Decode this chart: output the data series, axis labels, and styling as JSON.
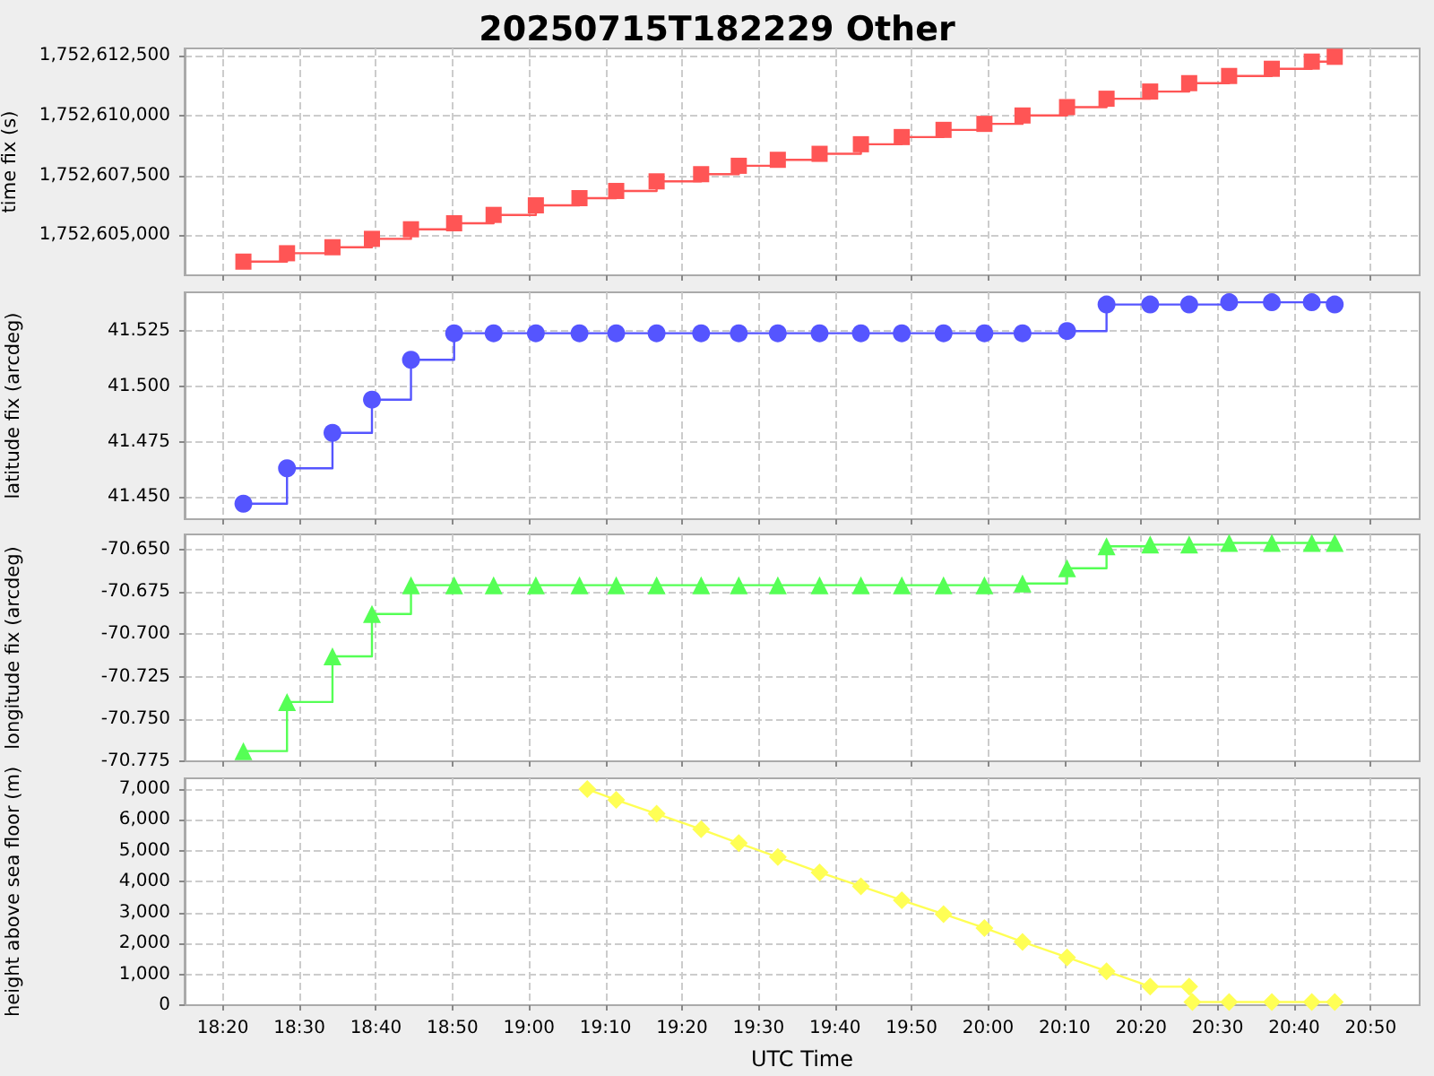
{
  "chart_data": [
    {
      "type": "step",
      "title": "20250715T182229 Other",
      "ylabel": "time fix (s)",
      "marker": "square",
      "grid": true,
      "tick_labels": "y",
      "x": [
        18.378,
        18.473,
        18.572,
        18.658,
        18.743,
        18.837,
        18.923,
        19.015,
        19.11,
        19.19,
        19.278,
        19.375,
        19.457,
        19.542,
        19.633,
        19.723,
        19.812,
        19.903,
        19.992,
        20.075,
        20.172,
        20.258,
        20.353,
        20.438,
        20.525,
        20.618,
        20.705,
        20.755
      ],
      "series": [
        {
          "color": "#ff5555",
          "values": [
            1752603900,
            1752604250,
            1752604500,
            1752604850,
            1752605250,
            1752605500,
            1752605850,
            1752606250,
            1752606550,
            1752606850,
            1752607250,
            1752607550,
            1752607900,
            1752608150,
            1752608400,
            1752608800,
            1752609100,
            1752609400,
            1752609650,
            1752610000,
            1752610350,
            1752610700,
            1752611000,
            1752611350,
            1752611650,
            1752611950,
            1752612250,
            1752612450
          ]
        }
      ],
      "xlim": [
        18.25,
        20.94
      ],
      "xticks": [
        {
          "value": 18.3333,
          "label": null
        },
        {
          "value": 18.5,
          "label": null
        },
        {
          "value": 18.6667,
          "label": null
        },
        {
          "value": 18.8333,
          "label": null
        },
        {
          "value": 19,
          "label": null
        },
        {
          "value": 19.1667,
          "label": null
        },
        {
          "value": 19.3333,
          "label": null
        },
        {
          "value": 19.5,
          "label": null
        },
        {
          "value": 19.6667,
          "label": null
        },
        {
          "value": 19.8333,
          "label": null
        },
        {
          "value": 20,
          "label": null
        },
        {
          "value": 20.1667,
          "label": null
        },
        {
          "value": 20.3333,
          "label": null
        },
        {
          "value": 20.5,
          "label": null
        },
        {
          "value": 20.6667,
          "label": null
        },
        {
          "value": 20.8333,
          "label": null
        }
      ],
      "ylim": [
        1752603330,
        1752612800
      ],
      "yticks": [
        {
          "value": 1752605000,
          "label": "1,752,605,000"
        },
        {
          "value": 1752607500,
          "label": "1,752,607,500"
        },
        {
          "value": 1752610000,
          "label": "1,752,610,000"
        },
        {
          "value": 1752612500,
          "label": "1,752,612,500"
        }
      ]
    },
    {
      "type": "step",
      "ylabel": "latitude fix (arcdeg)",
      "marker": "circle",
      "grid": true,
      "tick_labels": "y",
      "x": [
        18.378,
        18.473,
        18.572,
        18.658,
        18.743,
        18.837,
        18.923,
        19.015,
        19.11,
        19.19,
        19.278,
        19.375,
        19.457,
        19.542,
        19.633,
        19.723,
        19.812,
        19.903,
        19.992,
        20.075,
        20.172,
        20.258,
        20.353,
        20.438,
        20.525,
        20.618,
        20.705,
        20.755
      ],
      "series": [
        {
          "color": "#5555ff",
          "values": [
            41.447,
            41.463,
            41.479,
            41.494,
            41.512,
            41.524,
            41.524,
            41.524,
            41.524,
            41.524,
            41.524,
            41.524,
            41.524,
            41.524,
            41.524,
            41.524,
            41.524,
            41.524,
            41.524,
            41.524,
            41.525,
            41.537,
            41.537,
            41.537,
            41.538,
            41.538,
            41.538,
            41.537
          ]
        }
      ],
      "xlim": [
        18.25,
        20.94
      ],
      "xticks": [
        {
          "value": 18.3333,
          "label": null
        },
        {
          "value": 18.5,
          "label": null
        },
        {
          "value": 18.6667,
          "label": null
        },
        {
          "value": 18.8333,
          "label": null
        },
        {
          "value": 19,
          "label": null
        },
        {
          "value": 19.1667,
          "label": null
        },
        {
          "value": 19.3333,
          "label": null
        },
        {
          "value": 19.5,
          "label": null
        },
        {
          "value": 19.6667,
          "label": null
        },
        {
          "value": 19.8333,
          "label": null
        },
        {
          "value": 20,
          "label": null
        },
        {
          "value": 20.1667,
          "label": null
        },
        {
          "value": 20.3333,
          "label": null
        },
        {
          "value": 20.5,
          "label": null
        },
        {
          "value": 20.6667,
          "label": null
        },
        {
          "value": 20.8333,
          "label": null
        }
      ],
      "ylim": [
        41.44,
        41.5425
      ],
      "yticks": [
        {
          "value": 41.45,
          "label": "41.450"
        },
        {
          "value": 41.475,
          "label": "41.475"
        },
        {
          "value": 41.5,
          "label": "41.500"
        },
        {
          "value": 41.525,
          "label": "41.525"
        }
      ]
    },
    {
      "type": "step",
      "ylabel": "longitude fix (arcdeg)",
      "marker": "triangle",
      "grid": true,
      "tick_labels": "y",
      "x": [
        18.378,
        18.473,
        18.572,
        18.658,
        18.743,
        18.837,
        18.923,
        19.015,
        19.11,
        19.19,
        19.278,
        19.375,
        19.457,
        19.542,
        19.633,
        19.723,
        19.812,
        19.903,
        19.992,
        20.075,
        20.172,
        20.258,
        20.353,
        20.438,
        20.525,
        20.618,
        20.705,
        20.755
      ],
      "series": [
        {
          "color": "#55ff55",
          "values": [
            -70.769,
            -70.74,
            -70.713,
            -70.688,
            -70.671,
            -70.671,
            -70.671,
            -70.671,
            -70.671,
            -70.671,
            -70.671,
            -70.671,
            -70.671,
            -70.671,
            -70.671,
            -70.671,
            -70.671,
            -70.671,
            -70.671,
            -70.67,
            -70.661,
            -70.648,
            -70.647,
            -70.647,
            -70.646,
            -70.646,
            -70.646,
            -70.646
          ]
        }
      ],
      "xlim": [
        18.25,
        20.94
      ],
      "xticks": [
        {
          "value": 18.3333,
          "label": null
        },
        {
          "value": 18.5,
          "label": null
        },
        {
          "value": 18.6667,
          "label": null
        },
        {
          "value": 18.8333,
          "label": null
        },
        {
          "value": 19,
          "label": null
        },
        {
          "value": 19.1667,
          "label": null
        },
        {
          "value": 19.3333,
          "label": null
        },
        {
          "value": 19.5,
          "label": null
        },
        {
          "value": 19.6667,
          "label": null
        },
        {
          "value": 19.8333,
          "label": null
        },
        {
          "value": 20,
          "label": null
        },
        {
          "value": 20.1667,
          "label": null
        },
        {
          "value": 20.3333,
          "label": null
        },
        {
          "value": 20.5,
          "label": null
        },
        {
          "value": 20.6667,
          "label": null
        },
        {
          "value": 20.8333,
          "label": null
        }
      ],
      "ylim": [
        -70.775,
        -70.641
      ],
      "yticks": [
        {
          "value": -70.775,
          "label": "-70.775"
        },
        {
          "value": -70.75,
          "label": "-70.750"
        },
        {
          "value": -70.725,
          "label": "-70.725"
        },
        {
          "value": -70.7,
          "label": "-70.700"
        },
        {
          "value": -70.675,
          "label": "-70.675"
        },
        {
          "value": -70.65,
          "label": "-70.650"
        }
      ]
    },
    {
      "type": "line",
      "ylabel": "height above sea floor (m)",
      "xlabel": "UTC Time",
      "marker": "diamond",
      "grid": true,
      "x": [
        19.127,
        19.19,
        19.278,
        19.375,
        19.457,
        19.542,
        19.633,
        19.723,
        19.812,
        19.903,
        19.992,
        20.075,
        20.172,
        20.258,
        20.353,
        20.438,
        20.445,
        20.525,
        20.618,
        20.705,
        20.755
      ],
      "series": [
        {
          "color": "#ffff55",
          "values": [
            7000,
            6650,
            6200,
            5700,
            5250,
            4800,
            4300,
            3850,
            3400,
            2950,
            2500,
            2050,
            1550,
            1100,
            600,
            600,
            100,
            100,
            100,
            100,
            100
          ]
        }
      ],
      "xlim": [
        18.25,
        20.94
      ],
      "xticks": [
        {
          "value": 18.3333,
          "label": "18:20"
        },
        {
          "value": 18.5,
          "label": "18:30"
        },
        {
          "value": 18.6667,
          "label": "18:40"
        },
        {
          "value": 18.8333,
          "label": "18:50"
        },
        {
          "value": 19,
          "label": "19:00"
        },
        {
          "value": 19.1667,
          "label": "19:10"
        },
        {
          "value": 19.3333,
          "label": "19:20"
        },
        {
          "value": 19.5,
          "label": "19:30"
        },
        {
          "value": 19.6667,
          "label": "19:40"
        },
        {
          "value": 19.8333,
          "label": "19:50"
        },
        {
          "value": 20,
          "label": "20:00"
        },
        {
          "value": 20.1667,
          "label": "20:10"
        },
        {
          "value": 20.3333,
          "label": "20:20"
        },
        {
          "value": 20.5,
          "label": "20:30"
        },
        {
          "value": 20.6667,
          "label": "20:40"
        },
        {
          "value": 20.8333,
          "label": "20:50"
        }
      ],
      "ylim": [
        0,
        7350
      ],
      "yticks": [
        0,
        {
          "value": 1000,
          "label": "1,000"
        },
        {
          "value": 2000,
          "label": "2,000"
        },
        {
          "value": 3000,
          "label": "3,000"
        },
        {
          "value": 4000,
          "label": "4,000"
        },
        {
          "value": 5000,
          "label": "5,000"
        },
        {
          "value": 6000,
          "label": "6,000"
        },
        {
          "value": 7000,
          "label": "7,000"
        }
      ]
    }
  ]
}
